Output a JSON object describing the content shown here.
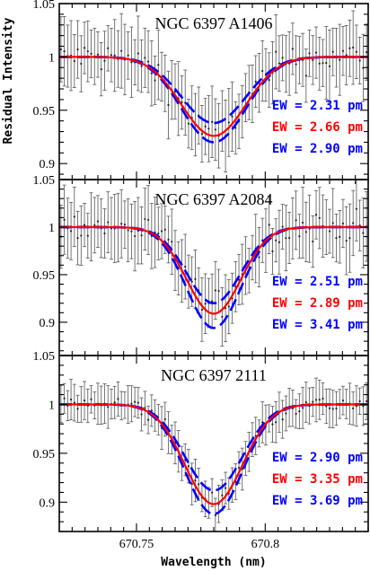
{
  "chart_data": [
    {
      "type": "line",
      "title": "NGC 6397 A1406",
      "xlim": [
        670.72,
        670.84
      ],
      "ylim": [
        0.885,
        1.05
      ],
      "line_center": 670.78,
      "observed": {
        "depth": 0.072,
        "sigma": 0.0125,
        "error": 0.028,
        "scatter": 0.018
      },
      "series": [
        {
          "label": "EW = 2.31 pm",
          "depth": 0.062,
          "sigma": 0.0125,
          "color": "#0000ff",
          "dash": true
        },
        {
          "label": "EW = 2.66 pm",
          "depth": 0.074,
          "sigma": 0.0125,
          "color": "#ff0000",
          "dash": false
        },
        {
          "label": "EW = 2.90 pm",
          "depth": 0.08,
          "sigma": 0.0125,
          "color": "#0000ff",
          "dash": true
        }
      ]
    },
    {
      "type": "line",
      "title": "NGC 6397 A2084",
      "xlim": [
        670.72,
        670.84
      ],
      "ylim": [
        0.865,
        1.05
      ],
      "line_center": 670.78,
      "observed": {
        "depth": 0.085,
        "sigma": 0.0105,
        "error": 0.03,
        "scatter": 0.02
      },
      "series": [
        {
          "label": "EW = 2.51 pm",
          "depth": 0.08,
          "sigma": 0.0105,
          "color": "#0000ff",
          "dash": true
        },
        {
          "label": "EW = 2.89 pm",
          "depth": 0.091,
          "sigma": 0.0105,
          "color": "#ff0000",
          "dash": false
        },
        {
          "label": "EW = 3.41 pm",
          "depth": 0.106,
          "sigma": 0.0105,
          "color": "#0000ff",
          "dash": true
        }
      ]
    },
    {
      "type": "line",
      "title": "NGC 6397 2111",
      "xlim": [
        670.72,
        670.84
      ],
      "ylim": [
        0.87,
        1.05
      ],
      "line_center": 670.78,
      "observed": {
        "depth": 0.1,
        "sigma": 0.0112,
        "error": 0.018,
        "scatter": 0.012
      },
      "series": [
        {
          "label": "EW = 2.90 pm",
          "depth": 0.088,
          "sigma": 0.0112,
          "color": "#0000ff",
          "dash": true
        },
        {
          "label": "EW = 3.35 pm",
          "depth": 0.102,
          "sigma": 0.0112,
          "color": "#ff0000",
          "dash": false
        },
        {
          "label": "EW = 3.69 pm",
          "depth": 0.112,
          "sigma": 0.0112,
          "color": "#0000ff",
          "dash": true
        }
      ]
    }
  ],
  "shared": {
    "xlabel": "Wavelength (nm)",
    "ylabel": "Residual Intensity",
    "x_ticks": [
      670.75,
      670.8
    ],
    "x_tick_labels": [
      "670.75",
      "670.8"
    ],
    "y_ticks": [
      0.9,
      0.95,
      1,
      1.05
    ],
    "y_tick_labels": [
      "0.9",
      "0.95",
      "1",
      "1.05"
    ]
  }
}
